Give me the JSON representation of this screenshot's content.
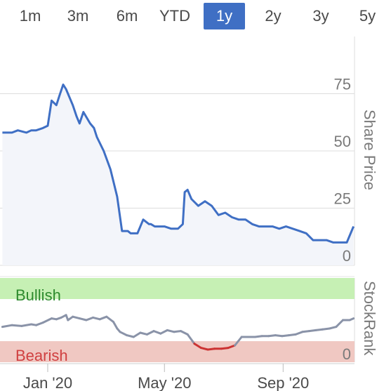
{
  "tabs": [
    {
      "label": "1m",
      "active": false
    },
    {
      "label": "3m",
      "active": false
    },
    {
      "label": "6m",
      "active": false
    },
    {
      "label": "YTD",
      "active": false
    },
    {
      "label": "1y",
      "active": true
    },
    {
      "label": "2y",
      "active": false
    },
    {
      "label": "3y",
      "active": false
    },
    {
      "label": "5y",
      "active": false
    }
  ],
  "colors": {
    "price_line": "#3f6fc4",
    "price_fill": "#f3f5fa",
    "rank_line": "#8a93a8",
    "rank_bearish_line": "#cc3333",
    "bullish_zone": "#c6f0b4",
    "bearish_zone": "#f0c8c2",
    "bullish_text": "#2e8b2e",
    "bearish_text": "#d04040",
    "active_tab": "#3f6fc4"
  },
  "chart_data": [
    {
      "type": "line",
      "ylabel": "Share Price",
      "ylim": [
        0,
        100
      ],
      "yticks": [
        0,
        25,
        50,
        75
      ],
      "xticks": [
        {
          "label": "Jan '20",
          "date": "2020-01-01"
        },
        {
          "label": "May '20",
          "date": "2020-05-01"
        },
        {
          "label": "Sep '20",
          "date": "2020-09-01"
        }
      ],
      "series": [
        {
          "x": [
            "2019-11-15",
            "2019-11-25",
            "2019-12-01",
            "2019-12-10",
            "2019-12-15",
            "2019-12-20",
            "2019-12-27",
            "2020-01-01",
            "2020-01-05",
            "2020-01-10",
            "2020-01-13",
            "2020-01-17",
            "2020-01-20",
            "2020-01-27",
            "2020-01-31",
            "2020-02-03",
            "2020-02-07",
            "2020-02-14",
            "2020-02-18",
            "2020-02-21",
            "2020-02-28",
            "2020-03-06",
            "2020-03-13",
            "2020-03-18",
            "2020-03-20",
            "2020-03-24",
            "2020-03-27",
            "2020-04-03",
            "2020-04-09",
            "2020-04-15",
            "2020-04-17",
            "2020-04-21",
            "2020-04-24",
            "2020-05-01",
            "2020-05-08",
            "2020-05-15",
            "2020-05-20",
            "2020-05-22",
            "2020-05-25",
            "2020-05-29",
            "2020-06-05",
            "2020-06-12",
            "2020-06-19",
            "2020-06-26",
            "2020-07-03",
            "2020-07-10",
            "2020-07-17",
            "2020-07-24",
            "2020-07-31",
            "2020-08-07",
            "2020-08-14",
            "2020-08-21",
            "2020-08-28",
            "2020-09-04",
            "2020-09-11",
            "2020-09-18",
            "2020-09-25",
            "2020-10-02",
            "2020-10-09",
            "2020-10-16",
            "2020-10-23",
            "2020-10-30",
            "2020-11-06",
            "2020-11-13"
          ],
          "values": [
            58,
            58,
            59,
            58,
            59,
            59,
            60,
            61,
            72,
            70,
            74,
            79,
            77,
            70,
            65,
            62,
            67,
            62,
            60,
            56,
            50,
            42,
            30,
            15,
            15,
            15,
            14,
            14,
            20,
            18,
            18,
            17,
            17,
            17,
            16,
            16,
            18,
            32,
            33,
            29,
            26,
            28,
            26,
            22,
            23,
            21,
            20,
            20,
            18,
            17,
            17,
            17,
            16,
            17,
            16,
            15,
            14,
            11,
            11,
            11,
            10,
            10,
            10,
            17
          ]
        }
      ]
    },
    {
      "type": "line",
      "ylabel": "StockRank",
      "ylim": [
        0,
        100
      ],
      "yticks": [
        0
      ],
      "annotations": [
        "Bullish",
        "Bearish"
      ],
      "series": [
        {
          "x": [
            "2019-11-15",
            "2019-11-25",
            "2019-12-05",
            "2019-12-15",
            "2019-12-20",
            "2019-12-27",
            "2020-01-05",
            "2020-01-10",
            "2020-01-15",
            "2020-01-20",
            "2020-01-22",
            "2020-01-27",
            "2020-02-03",
            "2020-02-10",
            "2020-02-17",
            "2020-02-24",
            "2020-03-02",
            "2020-03-09",
            "2020-03-13",
            "2020-03-16",
            "2020-03-23",
            "2020-03-30",
            "2020-04-06",
            "2020-04-13",
            "2020-04-20",
            "2020-04-27",
            "2020-05-04",
            "2020-05-11",
            "2020-05-18",
            "2020-05-25",
            "2020-06-01",
            "2020-06-08",
            "2020-06-15",
            "2020-06-22",
            "2020-06-29",
            "2020-07-06",
            "2020-07-13",
            "2020-07-20",
            "2020-07-27",
            "2020-08-03",
            "2020-08-10",
            "2020-08-17",
            "2020-08-24",
            "2020-08-31",
            "2020-09-07",
            "2020-09-14",
            "2020-09-21",
            "2020-09-28",
            "2020-10-05",
            "2020-10-12",
            "2020-10-19",
            "2020-10-26",
            "2020-11-02",
            "2020-11-09",
            "2020-11-13"
          ],
          "values": [
            42,
            44,
            43,
            45,
            44,
            47,
            52,
            51,
            53,
            56,
            50,
            54,
            52,
            50,
            53,
            51,
            54,
            48,
            40,
            36,
            32,
            30,
            35,
            33,
            37,
            34,
            38,
            36,
            37,
            33,
            22,
            17,
            15,
            16,
            16,
            17,
            20,
            30,
            30,
            30,
            31,
            31,
            32,
            31,
            32,
            33,
            36,
            37,
            38,
            39,
            40,
            42,
            50,
            50,
            52
          ]
        }
      ]
    }
  ]
}
